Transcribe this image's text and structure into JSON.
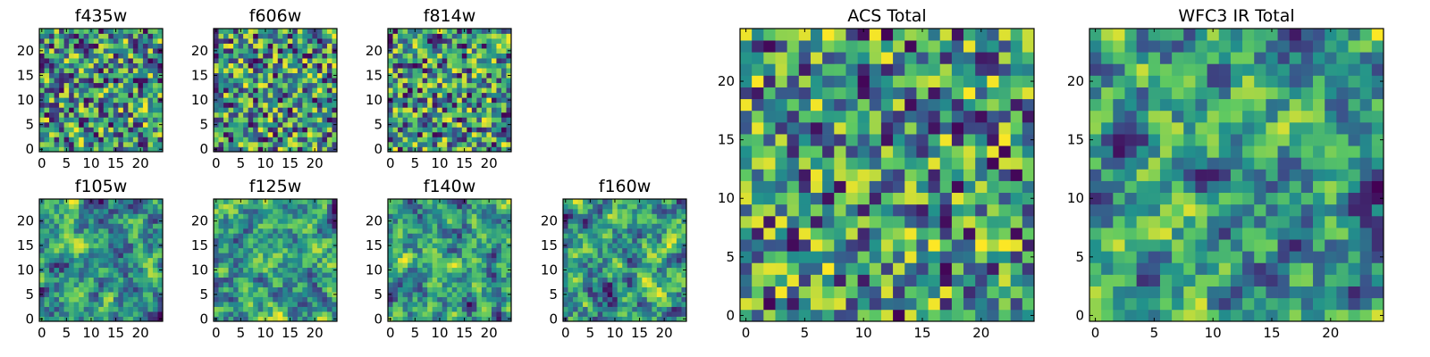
{
  "figure": {
    "description_colormap": "viridis",
    "colormap_stops": [
      "#440154",
      "#3b528b",
      "#21918c",
      "#5ec962",
      "#fde725"
    ]
  },
  "chart_data": [
    {
      "type": "heatmap",
      "title": "f435w",
      "grid_size": 25,
      "xticks": [
        0,
        5,
        10,
        15,
        20
      ],
      "yticks": [
        0,
        5,
        10,
        15,
        20
      ],
      "seed": 11,
      "smooth": 0,
      "bias": 0.58
    },
    {
      "type": "heatmap",
      "title": "f606w",
      "grid_size": 25,
      "xticks": [
        0,
        5,
        10,
        15,
        20
      ],
      "yticks": [
        0,
        5,
        10,
        15,
        20
      ],
      "seed": 23,
      "smooth": 0,
      "bias": 0.58
    },
    {
      "type": "heatmap",
      "title": "f814w",
      "grid_size": 25,
      "xticks": [
        0,
        5,
        10,
        15,
        20
      ],
      "yticks": [
        0,
        5,
        10,
        15,
        20
      ],
      "seed": 37,
      "smooth": 0,
      "bias": 0.58
    },
    {
      "type": "heatmap",
      "title": "f105w",
      "grid_size": 25,
      "xticks": [
        0,
        5,
        10,
        15,
        20
      ],
      "yticks": [
        0,
        5,
        10,
        15,
        20
      ],
      "seed": 41,
      "smooth": 1,
      "bias": 0.6
    },
    {
      "type": "heatmap",
      "title": "f125w",
      "grid_size": 25,
      "xticks": [
        0,
        5,
        10,
        15,
        20
      ],
      "yticks": [
        0,
        5,
        10,
        15,
        20
      ],
      "seed": 53,
      "smooth": 1,
      "bias": 0.6
    },
    {
      "type": "heatmap",
      "title": "f140w",
      "grid_size": 25,
      "xticks": [
        0,
        5,
        10,
        15,
        20
      ],
      "yticks": [
        0,
        5,
        10,
        15,
        20
      ],
      "seed": 67,
      "smooth": 1,
      "bias": 0.6
    },
    {
      "type": "heatmap",
      "title": "f160w",
      "grid_size": 25,
      "xticks": [
        0,
        5,
        10,
        15,
        20
      ],
      "yticks": [
        0,
        5,
        10,
        15,
        20
      ],
      "seed": 79,
      "smooth": 1,
      "bias": 0.6
    },
    {
      "type": "heatmap",
      "title": "ACS Total",
      "grid_size": 25,
      "xticks": [
        0,
        5,
        10,
        15,
        20
      ],
      "yticks": [
        0,
        5,
        10,
        15,
        20
      ],
      "seed": 97,
      "smooth": 0,
      "bias": 0.62
    },
    {
      "type": "heatmap",
      "title": "WFC3 IR Total",
      "grid_size": 25,
      "xticks": [
        0,
        5,
        10,
        15,
        20
      ],
      "yticks": [
        0,
        5,
        10,
        15,
        20
      ],
      "seed": 113,
      "smooth": 1,
      "bias": 0.55
    }
  ]
}
